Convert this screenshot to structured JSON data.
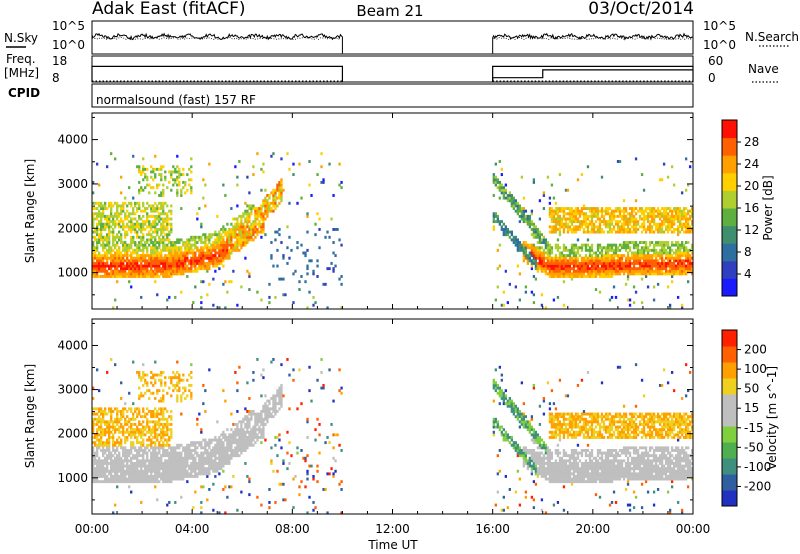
{
  "header": {
    "radar": "Adak East (fitACF)",
    "beam": "Beam 21",
    "date": "03/Oct/2014"
  },
  "info_panels": {
    "nsky_label": "N.Sky",
    "nsearch_label": "N.Search",
    "freq_label_1": "Freq.",
    "freq_label_2": "[MHz]",
    "nave_label": "Nave",
    "cpid_label": "CPID",
    "cpid_text": "normalsound (fast) 157 RF",
    "noise_ticks": [
      "10^5",
      "10^0"
    ],
    "freq_ticks": [
      "18",
      "8"
    ],
    "nave_ticks": [
      "60",
      "0"
    ]
  },
  "axis": {
    "xlabel": "Time UT",
    "ylabel": "Slant Range [km]",
    "xticks": [
      "00:00",
      "04:00",
      "08:00",
      "12:00",
      "16:00",
      "20:00",
      "00:00"
    ],
    "xtick_hours": [
      0,
      4,
      8,
      12,
      16,
      20,
      24
    ],
    "yticks": [
      "1000",
      "2000",
      "3000",
      "4000"
    ],
    "ytick_values": [
      1000,
      2000,
      3000,
      4000
    ],
    "xlim": [
      0,
      24
    ],
    "ylim": [
      180,
      4600
    ]
  },
  "colorbars": {
    "power": {
      "label": "Power [dB]",
      "ticks": [
        "4",
        "8",
        "12",
        "16",
        "20",
        "24",
        "28"
      ],
      "colors": [
        "#1a1aff",
        "#2f3fbf",
        "#2f6fa0",
        "#3f8f6f",
        "#5faf3f",
        "#afcf2f",
        "#ffcf00",
        "#ffa000",
        "#ff6000",
        "#ff1000"
      ]
    },
    "velocity": {
      "label": "Velocity [m s^-1]",
      "ticks": [
        "200",
        "100",
        "50",
        "15",
        "-15",
        "-50",
        "-100",
        "-200"
      ],
      "colors": [
        "#2030c0",
        "#2f5fa0",
        "#3f8f7f",
        "#4faf4f",
        "#7fcf3f",
        "#bfbfbf",
        "#bfbfbf",
        "#efcf20",
        "#ffa000",
        "#ff6000",
        "#ff2000"
      ]
    }
  },
  "chart_data": [
    {
      "type": "heatmap",
      "name": "power",
      "x_range_hours": [
        0,
        24
      ],
      "y_range_km": [
        180,
        4600
      ],
      "data_gap_hours": [
        10,
        16
      ],
      "value_range": [
        0,
        30
      ]
    },
    {
      "type": "heatmap",
      "name": "velocity",
      "x_range_hours": [
        0,
        24
      ],
      "y_range_km": [
        180,
        4600
      ],
      "data_gap_hours": [
        10,
        16
      ],
      "value_range": [
        -250,
        250
      ]
    },
    {
      "type": "line",
      "name": "noise",
      "x_range_hours": [
        0,
        24
      ],
      "data_gap_hours": [
        10,
        16
      ]
    },
    {
      "type": "line",
      "name": "frequency",
      "x_range_hours": [
        0,
        24
      ],
      "data_gap_hours": [
        10,
        16
      ],
      "freq_segments_mhz": [
        {
          "x0": 0,
          "x1": 10,
          "y": 14
        },
        {
          "x0": 16,
          "x1": 24,
          "y": 14
        }
      ],
      "nave_steps": [
        {
          "x0": 16,
          "x1": 18,
          "y": 10
        },
        {
          "x0": 18,
          "x1": 24,
          "y": 28
        }
      ]
    }
  ]
}
